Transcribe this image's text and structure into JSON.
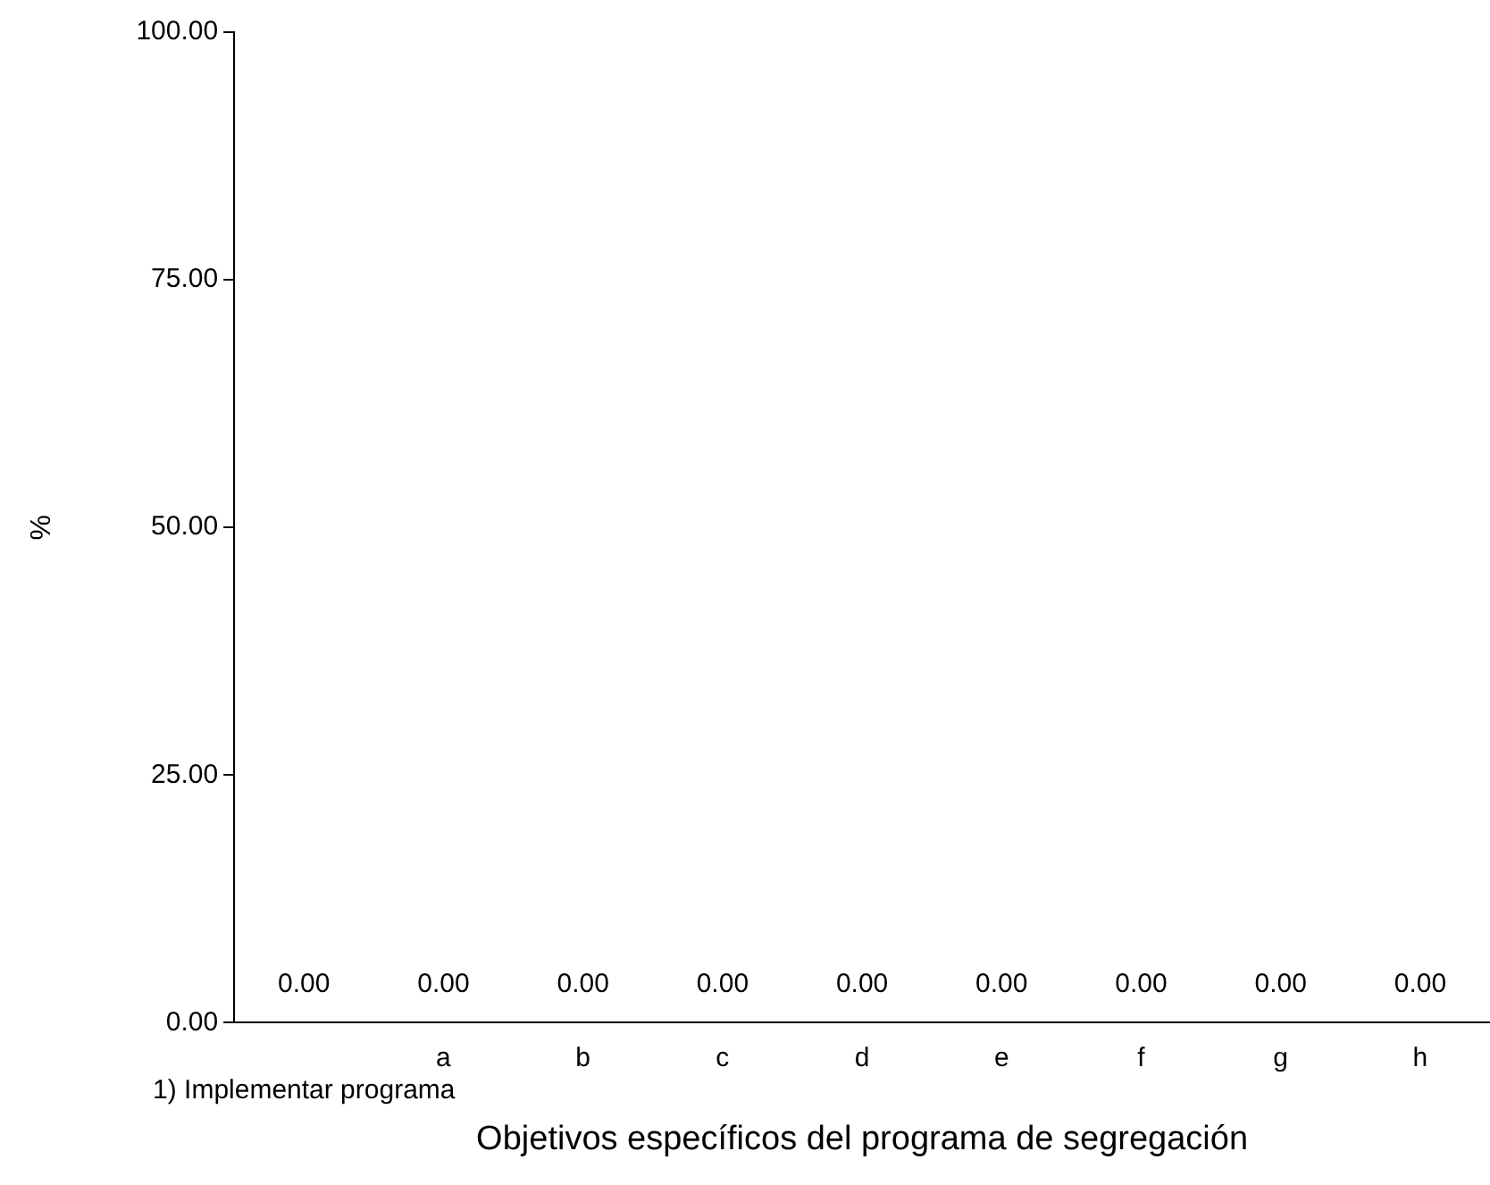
{
  "chart_data": {
    "type": "bar",
    "xlabel": "Objetivos específicos del programa de segregación",
    "ylabel": "%",
    "categories": [
      "1) Implementar programa",
      "a",
      "b",
      "c",
      "d",
      "e",
      "f",
      "g",
      "h"
    ],
    "values": [
      0,
      0,
      0,
      0,
      0,
      0,
      0,
      0,
      0
    ],
    "value_labels": [
      "0.00",
      "0.00",
      "0.00",
      "0.00",
      "0.00",
      "0.00",
      "0.00",
      "0.00",
      "0.00"
    ],
    "ylim": [
      0,
      100
    ],
    "yticks": [
      {
        "value": 0,
        "label": "0.00"
      },
      {
        "value": 25,
        "label": "25.00"
      },
      {
        "value": 50,
        "label": "50.00"
      },
      {
        "value": 75,
        "label": "75.00"
      },
      {
        "value": 100,
        "label": "100.00"
      }
    ],
    "grid": false,
    "legend": false
  }
}
